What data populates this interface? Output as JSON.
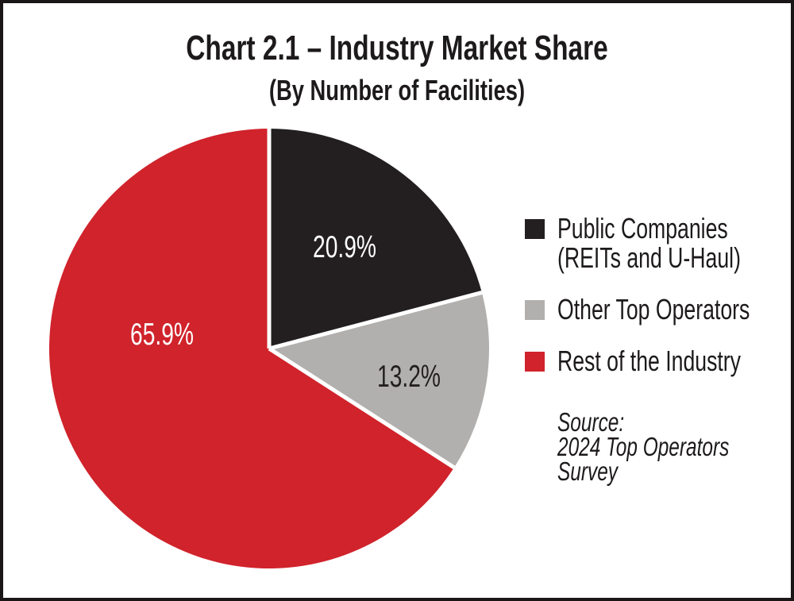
{
  "header": {
    "title": "Chart 2.1 – Industry Market Share",
    "subtitle": "(By Number of Facilities)"
  },
  "chart_data": {
    "type": "pie",
    "title": "Chart 2.1 – Industry Market Share",
    "subtitle": "(By Number of Facilities)",
    "categories": [
      "Public Companies (REITs and U-Haul)",
      "Other Top Operators",
      "Rest of the Industry"
    ],
    "values": [
      20.9,
      13.2,
      65.9
    ],
    "value_labels": [
      "20.9%",
      "13.2%",
      "65.9%"
    ],
    "colors": [
      "#231f20",
      "#b1b0ae",
      "#d0232b"
    ],
    "value_label_colors": [
      "#ffffff",
      "#231f20",
      "#ffffff"
    ],
    "separator_color": "#ffffff",
    "start_angle_deg": 0,
    "direction": "clockwise-from-12-oclock",
    "legend_position": "right",
    "source_note": "Source: 2024 Top Operators Survey"
  },
  "legend": {
    "items": [
      {
        "line1": "Public Companies",
        "line2": "(REITs and U-Haul)",
        "swatch_color": "#231f20"
      },
      {
        "line1": "Other Top Operators",
        "swatch_color": "#b1b0ae"
      },
      {
        "line1": "Rest of the Industry",
        "swatch_color": "#d0232b"
      }
    ]
  },
  "source": {
    "line1": "Source:",
    "line2": "2024 Top Operators",
    "line3": "Survey"
  }
}
